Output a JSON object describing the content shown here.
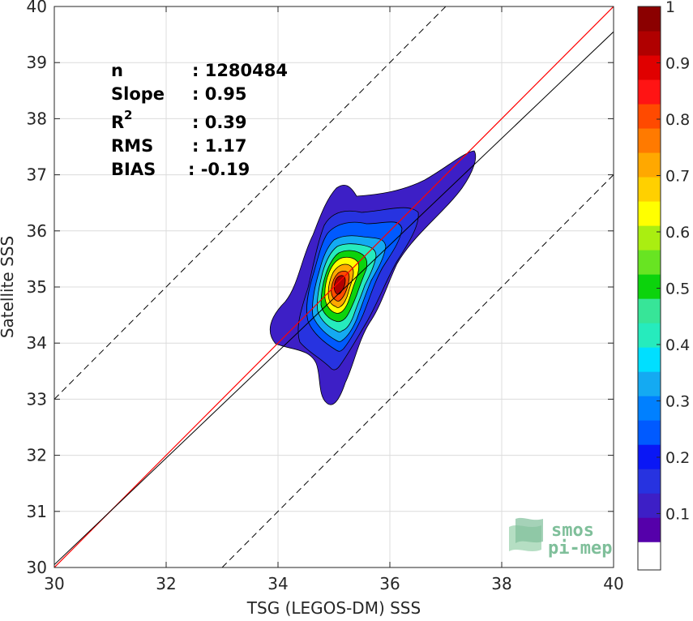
{
  "chart_data": {
    "type": "contour",
    "xlabel": "TSG (LEGOS-DM) SSS",
    "ylabel": "Satellite SSS",
    "xlim": [
      30,
      40
    ],
    "ylim": [
      30,
      40
    ],
    "x_ticks": [
      "30",
      "32",
      "34",
      "36",
      "38",
      "40"
    ],
    "y_ticks": [
      "30",
      "31",
      "32",
      "33",
      "34",
      "35",
      "36",
      "37",
      "38",
      "39",
      "40"
    ],
    "grid": true,
    "stats": [
      {
        "label": "n",
        "value": ": 1280484"
      },
      {
        "label": "Slope",
        "value": ": 0.95"
      },
      {
        "label": "R",
        "sup": "2",
        "value": ": 0.39"
      },
      {
        "label": "RMS",
        "value": ": 1.17"
      },
      {
        "label": "BIAS",
        "value": ": -0.19"
      }
    ],
    "lines": [
      {
        "role": "one-to-one",
        "color": "#ff0000",
        "points": [
          [
            30,
            30
          ],
          [
            40,
            40
          ]
        ]
      },
      {
        "role": "regression",
        "color": "#000000",
        "slope": 0.95,
        "intercept": 1.55
      },
      {
        "role": "offset-plus-3",
        "color": "#000000",
        "dashed": true,
        "points": [
          [
            30,
            33
          ],
          [
            37,
            40
          ]
        ]
      },
      {
        "role": "offset-minus-3",
        "color": "#000000",
        "dashed": true,
        "points": [
          [
            33,
            30
          ],
          [
            40,
            37
          ]
        ]
      }
    ],
    "density_peak": {
      "x": 35.05,
      "y": 35.1
    },
    "contour_levels": [
      0.05,
      0.1,
      0.2,
      0.3,
      0.4,
      0.5,
      0.6,
      0.7,
      0.8,
      0.9
    ],
    "colorbar": {
      "ticks": [
        "0.1",
        "0.2",
        "0.3",
        "0.4",
        "0.5",
        "0.6",
        "0.7",
        "0.8",
        "0.9",
        "1"
      ],
      "tick_values": [
        0.1,
        0.2,
        0.3,
        0.4,
        0.5,
        0.6,
        0.7,
        0.8,
        0.9,
        1.0
      ],
      "range": [
        0,
        1
      ],
      "bottom_white_fraction": 0.05,
      "colors": [
        "#5500aa",
        "#3d1fc6",
        "#2733e0",
        "#0a17f5",
        "#005aff",
        "#0080ff",
        "#14aaf2",
        "#00dfff",
        "#26ebbd",
        "#37e598",
        "#0cd30c",
        "#68e422",
        "#aaee11",
        "#ffff00",
        "#ffd000",
        "#ffa800",
        "#ff7a00",
        "#ff4a00",
        "#ff1414",
        "#e00000",
        "#b00000",
        "#8b0000"
      ]
    },
    "logo": {
      "line1": "smos",
      "line2": "pi-mep"
    }
  }
}
